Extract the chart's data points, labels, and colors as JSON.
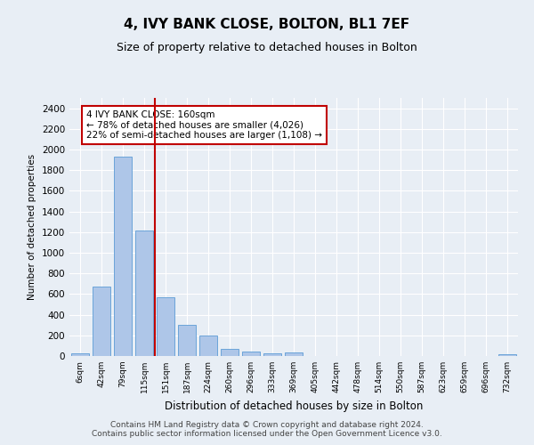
{
  "title": "4, IVY BANK CLOSE, BOLTON, BL1 7EF",
  "subtitle": "Size of property relative to detached houses in Bolton",
  "xlabel": "Distribution of detached houses by size in Bolton",
  "ylabel": "Number of detached properties",
  "categories": [
    "6sqm",
    "42sqm",
    "79sqm",
    "115sqm",
    "151sqm",
    "187sqm",
    "224sqm",
    "260sqm",
    "296sqm",
    "333sqm",
    "369sqm",
    "405sqm",
    "442sqm",
    "478sqm",
    "514sqm",
    "550sqm",
    "587sqm",
    "623sqm",
    "659sqm",
    "696sqm",
    "732sqm"
  ],
  "values": [
    25,
    670,
    1930,
    1215,
    570,
    305,
    200,
    70,
    45,
    30,
    35,
    0,
    0,
    0,
    0,
    0,
    0,
    0,
    0,
    0,
    15
  ],
  "bar_color": "#aec6e8",
  "bar_edge_color": "#5b9bd5",
  "vline_x": 3.5,
  "vline_color": "#c00000",
  "annotation_text": "4 IVY BANK CLOSE: 160sqm\n← 78% of detached houses are smaller (4,026)\n22% of semi-detached houses are larger (1,108) →",
  "annotation_box_color": "#c00000",
  "footer_text": "Contains HM Land Registry data © Crown copyright and database right 2024.\nContains public sector information licensed under the Open Government Licence v3.0.",
  "ylim": [
    0,
    2500
  ],
  "yticks": [
    0,
    200,
    400,
    600,
    800,
    1000,
    1200,
    1400,
    1600,
    1800,
    2000,
    2200,
    2400
  ],
  "background_color": "#e8eef5",
  "plot_bg_color": "#e8eef5",
  "grid_color": "#ffffff",
  "title_fontsize": 11,
  "subtitle_fontsize": 9,
  "footer_fontsize": 6.5,
  "annotation_fontsize": 7.5
}
